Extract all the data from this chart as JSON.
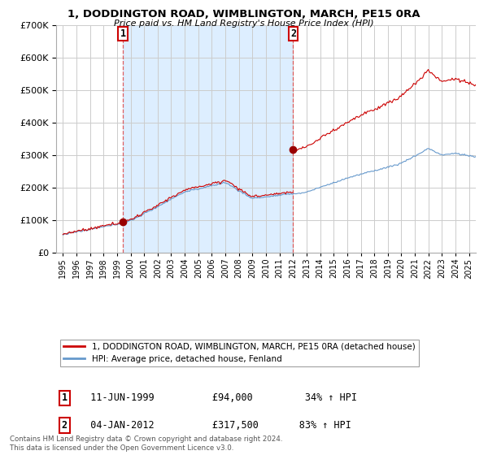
{
  "title": "1, DODDINGTON ROAD, WIMBLINGTON, MARCH, PE15 0RA",
  "subtitle": "Price paid vs. HM Land Registry's House Price Index (HPI)",
  "sale1_year": 1999.44,
  "sale1_price": 94000,
  "sale1_label": "1",
  "sale1_date": "11-JUN-1999",
  "sale1_pct": "34%",
  "sale2_year": 2012.01,
  "sale2_price": 317500,
  "sale2_label": "2",
  "sale2_date": "04-JAN-2012",
  "sale2_pct": "83%",
  "legend_line1": "1, DODDINGTON ROAD, WIMBLINGTON, MARCH, PE15 0RA (detached house)",
  "legend_line2": "HPI: Average price, detached house, Fenland",
  "footnote": "Contains HM Land Registry data © Crown copyright and database right 2024.\nThis data is licensed under the Open Government Licence v3.0.",
  "line1_color": "#cc0000",
  "line2_color": "#6699cc",
  "shade_color": "#ddeeff",
  "marker_color": "#990000",
  "grid_color": "#cccccc",
  "vline_color": "#dd4444",
  "background_color": "#ffffff",
  "ylim": [
    0,
    700000
  ],
  "xlim_start": 1994.5,
  "xlim_end": 2025.5,
  "ytick_interval": 100000,
  "annotation_box_color": "#cc0000"
}
